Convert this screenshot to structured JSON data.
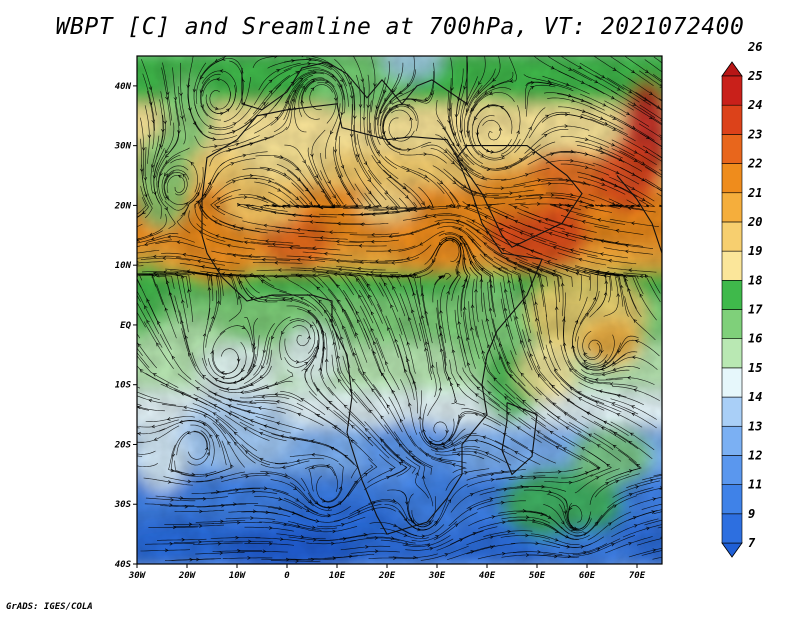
{
  "title": "WBPT [C] and Sreamline at 700hPa, VT: 2021072400",
  "credit": "GrADS: IGES/COLA",
  "map": {
    "lon_range": [
      -30,
      75
    ],
    "lat_range": [
      -40,
      45
    ],
    "lon_ticks": [
      {
        "value": -30,
        "label": "30W"
      },
      {
        "value": -20,
        "label": "20W"
      },
      {
        "value": -10,
        "label": "10W"
      },
      {
        "value": 0,
        "label": "0"
      },
      {
        "value": 10,
        "label": "10E"
      },
      {
        "value": 20,
        "label": "20E"
      },
      {
        "value": 30,
        "label": "30E"
      },
      {
        "value": 40,
        "label": "40E"
      },
      {
        "value": 50,
        "label": "50E"
      },
      {
        "value": 60,
        "label": "60E"
      },
      {
        "value": 70,
        "label": "70E"
      }
    ],
    "lat_ticks": [
      {
        "value": 40,
        "label": "40N"
      },
      {
        "value": 30,
        "label": "30N"
      },
      {
        "value": 20,
        "label": "20N"
      },
      {
        "value": 10,
        "label": "10N"
      },
      {
        "value": 0,
        "label": "EQ"
      },
      {
        "value": -10,
        "label": "10S"
      },
      {
        "value": -20,
        "label": "20S"
      },
      {
        "value": -30,
        "label": "30S"
      },
      {
        "value": -40,
        "label": "40S"
      }
    ]
  },
  "colorbar": {
    "levels": [
      "7",
      "9",
      "11",
      "12",
      "13",
      "14",
      "15",
      "16",
      "17",
      "18",
      "19",
      "20",
      "21",
      "22",
      "23",
      "24",
      "25",
      "26"
    ],
    "colors": [
      "#1f5fd6",
      "#2d6fe0",
      "#3f82e8",
      "#5a97ee",
      "#7bb0f3",
      "#a9cff7",
      "#e6f7fb",
      "#b9e8b3",
      "#7fd07a",
      "#3fb94b",
      "#fbe69a",
      "#f7cf6f",
      "#f5ae3c",
      "#ef8c1c",
      "#e8661c",
      "#dc421a",
      "#c9201a",
      "#b81616"
    ]
  }
}
